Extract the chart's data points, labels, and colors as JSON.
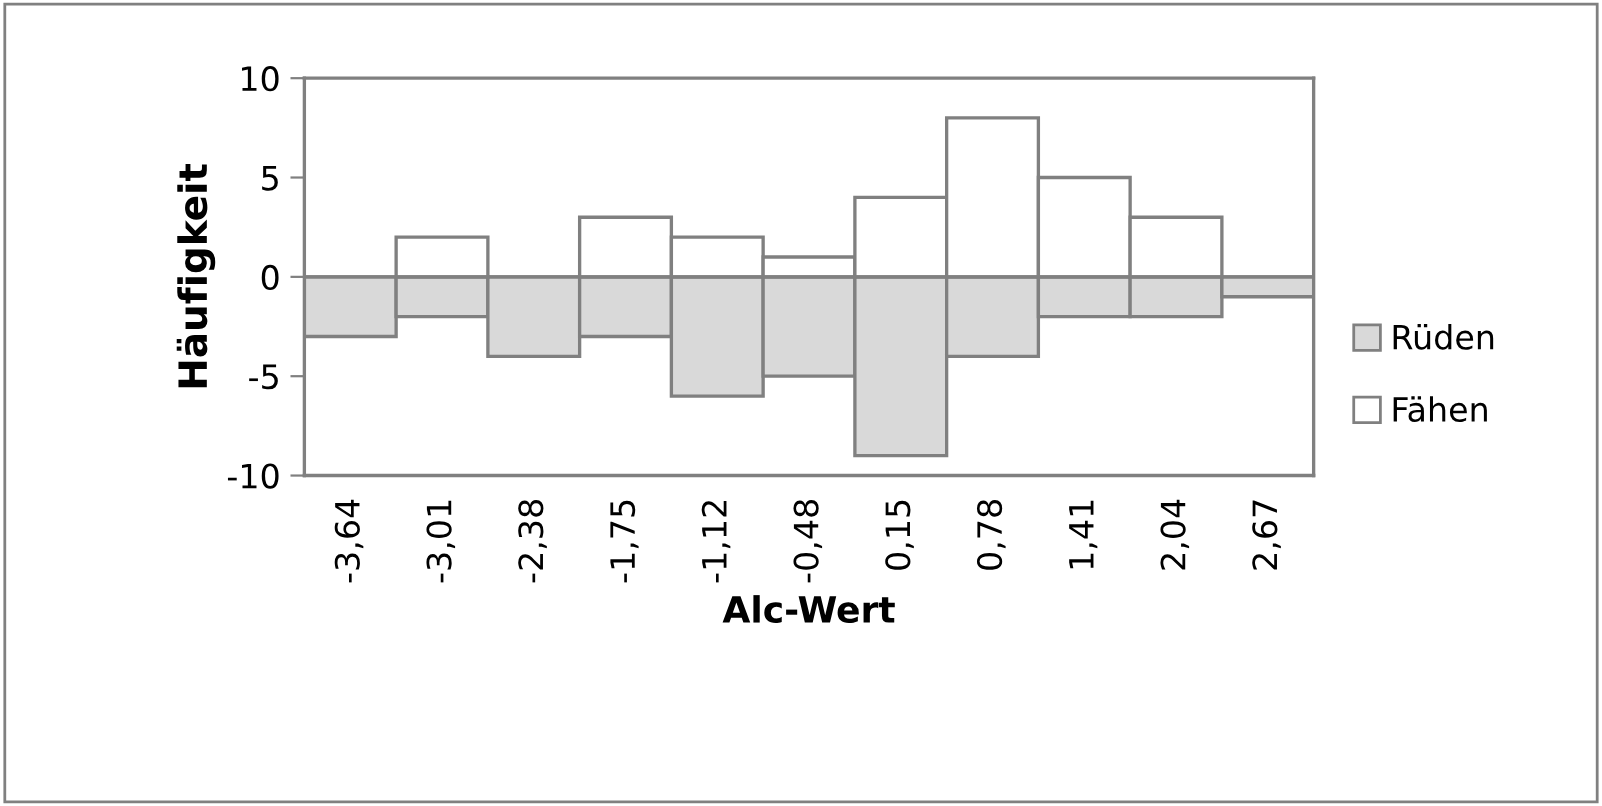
{
  "chart_data": {
    "type": "bar",
    "xlabel": "Alc-Wert",
    "ylabel": "Häufigkeit",
    "categories": [
      "-3,64",
      "-3,01",
      "-2,38",
      "-1,75",
      "-1,12",
      "-0,48",
      "0,15",
      "0,78",
      "1,41",
      "2,04",
      "2,67"
    ],
    "series": [
      {
        "name": "Rüden",
        "color": "#d9d9d9",
        "values": [
          -3,
          -2,
          -4,
          -3,
          -6,
          -5,
          -9,
          -4,
          -2,
          -2,
          -1
        ]
      },
      {
        "name": "Fähen",
        "color": "#ffffff",
        "values": [
          null,
          2,
          null,
          3,
          2,
          1,
          4,
          8,
          5,
          3,
          null
        ]
      }
    ],
    "ylim": [
      -10,
      10
    ],
    "yticks": [
      -10,
      -5,
      0,
      5,
      10
    ],
    "stacked": true,
    "ref_lines": [
      {
        "axis": "y",
        "value": 0,
        "color": "#808080"
      }
    ],
    "legend": "right"
  }
}
